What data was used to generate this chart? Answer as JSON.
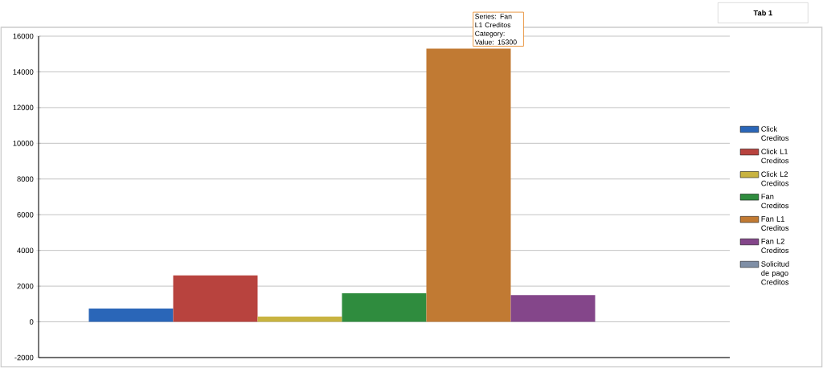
{
  "chart_data": {
    "type": "bar",
    "categories": [
      null
    ],
    "series": [
      {
        "name": "Click Creditos",
        "color": "#2a66b8",
        "values": [
          750
        ]
      },
      {
        "name": "Click L1 Creditos",
        "color": "#b8433e",
        "values": [
          2600
        ]
      },
      {
        "name": "Click L2 Creditos",
        "color": "#c8b340",
        "values": [
          300
        ]
      },
      {
        "name": "Fan Creditos",
        "color": "#2f8c3e",
        "values": [
          1600
        ]
      },
      {
        "name": "Fan L1 Creditos",
        "color": "#c17a33",
        "values": [
          15300
        ]
      },
      {
        "name": "Fan L2 Creditos",
        "color": "#84468a",
        "values": [
          1500
        ]
      },
      {
        "name": "Solicitud de pago Creditos",
        "color": "#7f8fa6",
        "values": [
          0
        ]
      }
    ],
    "ylim": [
      -2000,
      16000
    ],
    "yticks": [
      -2000,
      0,
      2000,
      4000,
      6000,
      8000,
      10000,
      12000,
      14000,
      16000
    ],
    "grid": "y",
    "legend": "right",
    "annotations": [
      {
        "text": "Series: Fan L1 Creditos Category: Value: 15300",
        "y": 15300
      },
      "Tab 1"
    ]
  }
}
